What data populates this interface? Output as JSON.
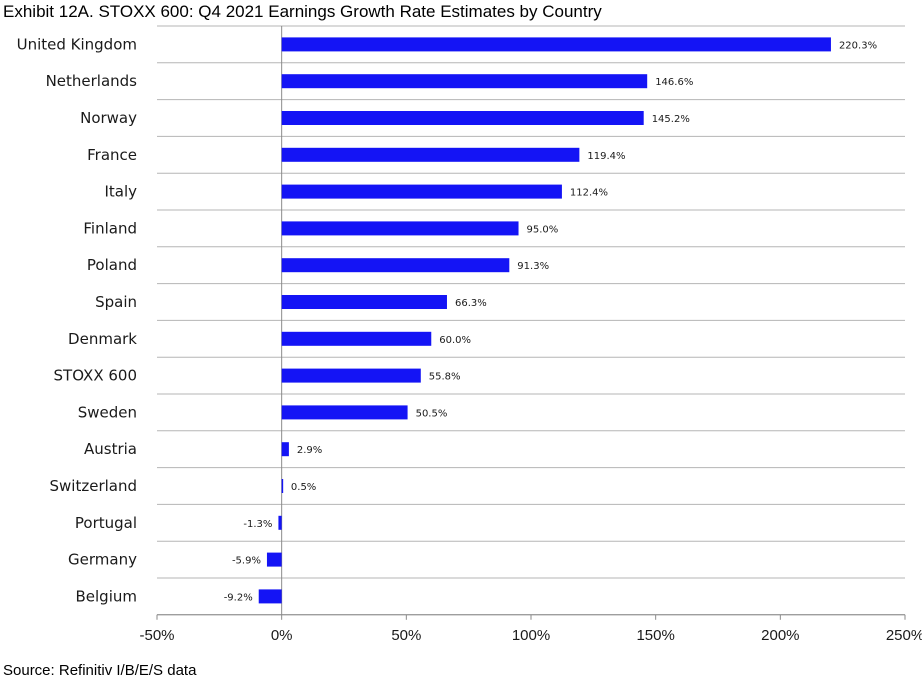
{
  "title": "Exhibit 12A.  STOXX 600: Q4 2021 Earnings Growth Rate Estimates by Country",
  "source": "Source: Refinitiv I/B/E/S data",
  "chart_data": {
    "type": "bar",
    "orientation": "horizontal",
    "categories": [
      "United Kingdom",
      "Netherlands",
      "Norway",
      "France",
      "Italy",
      "Finland",
      "Poland",
      "Spain",
      "Denmark",
      "STOXX 600",
      "Sweden",
      "Austria",
      "Switzerland",
      "Portugal",
      "Germany",
      "Belgium"
    ],
    "values": [
      220.3,
      146.6,
      145.2,
      119.4,
      112.4,
      95.0,
      91.3,
      66.3,
      60.0,
      55.8,
      50.5,
      2.9,
      0.5,
      -1.3,
      -5.9,
      -9.2
    ],
    "value_labels": [
      "220.3%",
      "146.6%",
      "145.2%",
      "119.4%",
      "112.4%",
      "95.0%",
      "91.3%",
      "66.3%",
      "60.0%",
      "55.8%",
      "50.5%",
      "2.9%",
      "0.5%",
      "-1.3%",
      "-5.9%",
      "-9.2%"
    ],
    "xlim": [
      -50,
      250
    ],
    "x_ticks": [
      -50,
      0,
      50,
      100,
      150,
      200,
      250
    ],
    "x_tick_labels": [
      "-50%",
      "0%",
      "50%",
      "100%",
      "150%",
      "200%",
      "250%"
    ],
    "bar_color": "#1414f5",
    "grid": "horizontal",
    "legend": "none"
  }
}
